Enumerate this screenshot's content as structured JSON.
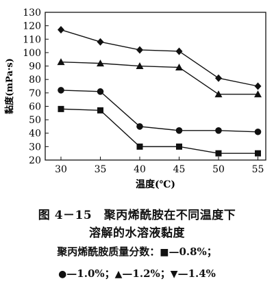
{
  "chart_data": {
    "type": "line",
    "ylabel": "黏度(mPa·s)",
    "xlabel": "温度(℃)",
    "x": [
      30,
      35,
      40,
      45,
      50,
      55
    ],
    "xlim": [
      28,
      56
    ],
    "ylim": [
      20,
      130
    ],
    "yticks": [
      20,
      30,
      40,
      50,
      60,
      70,
      80,
      90,
      100,
      110,
      120,
      130
    ],
    "xticks": [
      30,
      35,
      40,
      45,
      50,
      55
    ],
    "grid": false,
    "series": [
      {
        "name": "0.8%",
        "marker": "square",
        "values": [
          58,
          57,
          30,
          30,
          25,
          25
        ]
      },
      {
        "name": "1.0%",
        "marker": "circle",
        "values": [
          72,
          71,
          45,
          42,
          42,
          41
        ]
      },
      {
        "name": "1.2%",
        "marker": "triangle-up",
        "values": [
          93,
          92,
          90,
          89,
          69,
          69
        ]
      },
      {
        "name": "1.4%",
        "marker": "diamond",
        "values": [
          117,
          108,
          102,
          101,
          81,
          75
        ]
      }
    ]
  },
  "caption": {
    "title": "图 4－15　聚丙烯酰胺在不同温度下",
    "subtitle": "溶解的水溶液黏度"
  },
  "legend": {
    "line1_prefix": "聚丙烯酰胺质量分数：",
    "line1_item1_symbol": "■",
    "line1_item1_text": "—0.8%；",
    "line2_item1_symbol": "●",
    "line2_item1_text": "—1.0%；",
    "line2_item2_symbol": "▲",
    "line2_item2_text": "—1.2%；",
    "line2_item3_symbol": "▼",
    "line2_item3_text": "—1.4%"
  }
}
